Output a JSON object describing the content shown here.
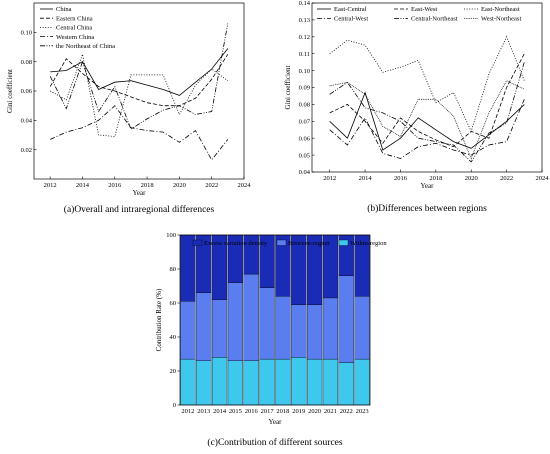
{
  "chart_data": [
    {
      "type": "line",
      "caption": "(a)Overall and intraregional differences",
      "xlabel": "Year",
      "ylabel": "Gini coefficient",
      "xlim": [
        2011,
        2024
      ],
      "ylim": [
        0.0,
        0.12
      ],
      "xticks": [
        2012,
        2014,
        2016,
        2018,
        2020,
        2022,
        2024
      ],
      "yticks": [
        0.02,
        0.04,
        0.06,
        0.08,
        0.1
      ],
      "x": [
        2012,
        2013,
        2014,
        2015,
        2016,
        2017,
        2018,
        2019,
        2020,
        2021,
        2022,
        2023
      ],
      "legend_position": "top-left",
      "series": [
        {
          "name": "China",
          "dash": "solid",
          "values": [
            0.073,
            0.074,
            0.08,
            0.061,
            0.066,
            0.067,
            0.064,
            0.061,
            0.057,
            0.066,
            0.075,
            0.089
          ]
        },
        {
          "name": "Eastern China",
          "dash": "dashed",
          "values": [
            0.063,
            0.082,
            0.072,
            0.063,
            0.06,
            0.056,
            0.052,
            0.05,
            0.05,
            0.055,
            0.068,
            0.085
          ]
        },
        {
          "name": "Central China",
          "dash": "dotted",
          "values": [
            0.06,
            0.054,
            0.085,
            0.03,
            0.029,
            0.071,
            0.071,
            0.071,
            0.044,
            0.064,
            0.075,
            0.067
          ]
        },
        {
          "name": "Western China",
          "dash": "dashdot",
          "values": [
            0.027,
            0.032,
            0.035,
            0.04,
            0.05,
            0.035,
            0.033,
            0.032,
            0.025,
            0.033,
            0.013,
            0.027
          ]
        },
        {
          "name": "the Northeast of China",
          "dash": "dashdotdot",
          "values": [
            0.07,
            0.048,
            0.08,
            0.046,
            0.063,
            0.034,
            0.041,
            0.047,
            0.05,
            0.044,
            0.046,
            0.106
          ]
        }
      ]
    },
    {
      "type": "line",
      "caption": "(b)Differences between regions",
      "xlabel": "Year",
      "ylabel": "Gini coefficient",
      "xlim": [
        2011,
        2024
      ],
      "ylim": [
        0.04,
        0.14
      ],
      "xticks": [
        2012,
        2014,
        2016,
        2018,
        2020,
        2022,
        2024
      ],
      "yticks": [
        0.04,
        0.05,
        0.06,
        0.07,
        0.08,
        0.09,
        0.1,
        0.11,
        0.12,
        0.13,
        0.14
      ],
      "x": [
        2012,
        2013,
        2014,
        2015,
        2016,
        2017,
        2018,
        2019,
        2020,
        2021,
        2022,
        2023
      ],
      "legend_position": "top",
      "series": [
        {
          "name": "East-Central",
          "dash": "solid",
          "values": [
            0.07,
            0.06,
            0.087,
            0.053,
            0.06,
            0.072,
            0.065,
            0.058,
            0.054,
            0.062,
            0.07,
            0.08
          ]
        },
        {
          "name": "East-West",
          "dash": "dashed",
          "values": [
            0.075,
            0.08,
            0.07,
            0.057,
            0.072,
            0.064,
            0.059,
            0.055,
            0.064,
            0.06,
            0.09,
            0.11
          ]
        },
        {
          "name": "East-Northeast",
          "dash": "dotted",
          "values": [
            0.11,
            0.118,
            0.115,
            0.099,
            0.102,
            0.106,
            0.081,
            0.087,
            0.064,
            0.098,
            0.12,
            0.094
          ]
        },
        {
          "name": "Central-West",
          "dash": "dashdot",
          "values": [
            0.065,
            0.056,
            0.072,
            0.051,
            0.048,
            0.055,
            0.057,
            0.053,
            0.05,
            0.056,
            0.058,
            0.083
          ]
        },
        {
          "name": "Central-Northeast",
          "dash": "dashdotdot",
          "values": [
            0.086,
            0.093,
            0.078,
            0.075,
            0.07,
            0.06,
            0.058,
            0.056,
            0.046,
            0.063,
            0.069,
            0.105
          ]
        },
        {
          "name": "West-Northeast",
          "dash": "densedot",
          "values": [
            0.091,
            0.093,
            0.086,
            0.067,
            0.061,
            0.083,
            0.083,
            0.073,
            0.048,
            0.075,
            0.094,
            0.089
          ]
        }
      ]
    },
    {
      "type": "bar",
      "stacked": true,
      "caption": "(c)Contribution of different sources",
      "xlabel": "Year",
      "ylabel": "Contribution Rate (%)",
      "ylim": [
        0,
        100
      ],
      "yticks": [
        0,
        20,
        40,
        60,
        80,
        100
      ],
      "categories": [
        "2012",
        "2013",
        "2014",
        "2015",
        "2016",
        "2017",
        "2018",
        "2019",
        "2020",
        "2021",
        "2022",
        "2023"
      ],
      "legend_position": "top",
      "series": [
        {
          "name": "Within-region",
          "color": "#3fc8ee",
          "values": [
            27,
            26,
            28,
            26,
            26,
            27,
            27,
            28,
            27,
            27,
            25,
            27
          ]
        },
        {
          "name": "Between-region",
          "color": "#5a7ef0",
          "values": [
            34,
            40,
            34,
            46,
            51,
            42,
            37,
            31,
            32,
            36,
            51,
            37
          ]
        },
        {
          "name": "Excess variation density",
          "color": "#1a2bb6",
          "values": [
            39,
            34,
            38,
            28,
            23,
            31,
            36,
            41,
            41,
            37,
            24,
            36
          ]
        }
      ]
    }
  ]
}
